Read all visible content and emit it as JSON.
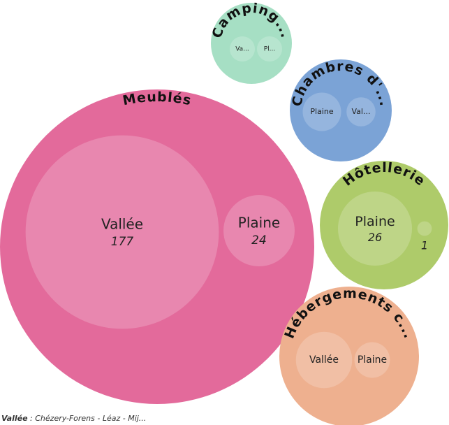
{
  "chart_data": {
    "type": "circle-packing",
    "groups": [
      {
        "name": "Meublés",
        "color": "#e36a9b",
        "show_values": true,
        "children": [
          {
            "name": "Vallée",
            "value": 177
          },
          {
            "name": "Plaine",
            "value": 24
          }
        ]
      },
      {
        "name": "Camping...",
        "color": "#a6dfc4",
        "show_values": false,
        "children": [
          {
            "name": "Va...",
            "value": 3
          },
          {
            "name": "Pl...",
            "value": 3
          }
        ]
      },
      {
        "name": "Chambres d'...",
        "color": "#7ba3d6",
        "show_values": false,
        "children": [
          {
            "name": "Plaine",
            "value": 7
          },
          {
            "name": "Val...",
            "value": 4
          }
        ]
      },
      {
        "name": "Hôtellerie",
        "color": "#aecb6a",
        "show_values": true,
        "children": [
          {
            "name": "Plaine",
            "value": 26
          },
          {
            "name": null,
            "value": 1
          }
        ]
      },
      {
        "name": "Hébergements c...",
        "color": "#eeb08f",
        "show_values": false,
        "children": [
          {
            "name": "Vallée",
            "value": 15
          },
          {
            "name": "Plaine",
            "value": 6
          }
        ]
      }
    ],
    "footnote": {
      "term": "Vallée",
      "text": " : Chézery-Forens - Léaz - Mij..."
    }
  }
}
